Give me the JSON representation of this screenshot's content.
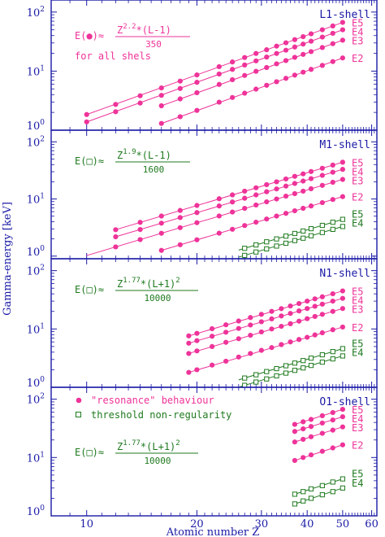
{
  "figure": {
    "ylabel": "Gamma-energy [keV]",
    "xlabel": "Atomic number Z",
    "x_ticks": [
      "10",
      "20",
      "30",
      "40",
      "50",
      "60"
    ],
    "colors": {
      "axis": "#1a1aa6",
      "resonance": "#ee3399",
      "threshold": "#1f7a1f"
    }
  },
  "panels": [
    {
      "shell_label": "L1-shell",
      "equation": {
        "prefix": "E(",
        "symbol": "●",
        "mid": ")≈",
        "numerator": "Z",
        "exponent": "2.2",
        "num_rest": "*(L-1)",
        "denominator": "350",
        "extra": "for all shels"
      },
      "series_labels": [
        "E5",
        "E4",
        "E3",
        "E2"
      ],
      "green_labels": []
    },
    {
      "shell_label": "M1-shell",
      "equation": {
        "prefix": "E(",
        "symbol": "□",
        "mid": ")≈",
        "numerator": "Z",
        "exponent": "1.9",
        "num_rest": "*(L-1)",
        "denominator": "1600",
        "extra": ""
      },
      "series_labels": [
        "E5",
        "E4",
        "E3",
        "E2"
      ],
      "green_labels": [
        "E5",
        "E4"
      ]
    },
    {
      "shell_label": "N1-shell",
      "equation": {
        "prefix": "E(",
        "symbol": "□",
        "mid": ")≈",
        "numerator": "Z",
        "exponent": "1.77",
        "num_rest": "*(L+1)",
        "num_sup2": "2",
        "denominator": "10000",
        "extra": ""
      },
      "series_labels": [
        "E5",
        "E4",
        "E3",
        "E2"
      ],
      "green_labels": [
        "E5",
        "E4"
      ]
    },
    {
      "shell_label": "O1-shell",
      "equation": {
        "prefix": "E(",
        "symbol": "□",
        "mid": ")≈",
        "numerator": "Z",
        "exponent": "1.77",
        "num_rest": "*(L+1)",
        "num_sup2": "2",
        "denominator": "10000",
        "extra": ""
      },
      "series_labels": [
        "E5",
        "E4",
        "E3",
        "E2"
      ],
      "green_labels": [
        "E5",
        "E4"
      ],
      "legend": [
        {
          "marker": "circle",
          "text": "\"resonance\" behaviour"
        },
        {
          "marker": "square",
          "text": "threshold non-regularity"
        }
      ]
    }
  ],
  "chart_data": [
    {
      "type": "scatter",
      "title": "L1-shell",
      "xscale": "log",
      "yscale": "log",
      "xlim": [
        8,
        62
      ],
      "ylim": [
        1,
        160
      ],
      "y_ticks": [
        "10^0",
        "10^1",
        "10^2"
      ],
      "fit_params": {
        "coefficient": 0.002857,
        "exponent": 2.2,
        "L_factor": "L-1"
      },
      "series": [
        {
          "name": "E5",
          "marker": "circle",
          "line_x": [
            10,
            50
          ],
          "x": [
            10,
            12,
            14,
            16,
            18,
            20,
            23,
            25,
            27,
            29,
            31,
            33,
            35,
            37,
            39,
            41,
            44,
            47,
            50
          ],
          "y": [
            1.84,
            2.73,
            3.83,
            5.19,
            6.77,
            8.62,
            11.9,
            14.3,
            17.0,
            19.9,
            23.0,
            26.5,
            30.2,
            34.1,
            38.3,
            42.8,
            50.2,
            58.2,
            66.8
          ]
        },
        {
          "name": "E4",
          "marker": "circle",
          "line_x": [
            10,
            50
          ],
          "x": [
            10,
            12,
            14,
            16,
            18,
            20,
            23,
            25,
            27,
            29,
            31,
            33,
            35,
            37,
            39,
            41,
            44,
            47,
            50
          ],
          "y": [
            1.38,
            2.05,
            2.88,
            3.89,
            5.08,
            6.47,
            8.93,
            10.7,
            12.7,
            14.9,
            17.3,
            19.9,
            22.6,
            25.6,
            28.7,
            32.1,
            37.7,
            43.7,
            50.1
          ]
        },
        {
          "name": "E3",
          "marker": "circle",
          "line_x": [
            16,
            50
          ],
          "x": [
            16,
            18,
            20,
            23,
            25,
            27,
            29,
            31,
            33,
            35,
            37,
            39,
            41,
            44,
            47,
            50
          ],
          "y": [
            2.59,
            3.39,
            4.31,
            5.95,
            7.15,
            8.45,
            9.92,
            11.5,
            13.3,
            15.1,
            17.1,
            19.2,
            21.4,
            25.1,
            29.1,
            33.4
          ]
        },
        {
          "name": "E2",
          "marker": "circle",
          "line_x": [
            16,
            50
          ],
          "x": [
            16,
            18,
            20,
            23,
            25,
            27,
            29,
            31,
            33,
            35,
            37,
            39,
            41,
            44,
            47,
            50
          ],
          "y": [
            1.3,
            1.69,
            2.16,
            2.98,
            3.58,
            4.23,
            4.96,
            5.75,
            6.62,
            7.55,
            8.55,
            9.6,
            10.7,
            12.5,
            14.5,
            16.7
          ]
        }
      ]
    },
    {
      "type": "scatter",
      "title": "M1-shell",
      "xscale": "log",
      "yscale": "log",
      "xlim": [
        8,
        62
      ],
      "ylim": [
        0.9,
        160
      ],
      "y_ticks": [
        "10^0",
        "10^1",
        "10^2"
      ],
      "series": [
        {
          "name": "E5",
          "marker": "circle",
          "line_x": [
            12,
            50
          ],
          "x": [
            12,
            14,
            16,
            18,
            20,
            23,
            25,
            27,
            29,
            31,
            33,
            35,
            37,
            39,
            41,
            44,
            47,
            50
          ],
          "y": [
            2.9,
            3.9,
            5.03,
            6.3,
            7.7,
            10.1,
            11.8,
            13.7,
            15.7,
            17.8,
            20.0,
            22.4,
            24.9,
            27.5,
            30.2,
            34.5,
            39.2,
            44.0
          ]
        },
        {
          "name": "E4",
          "marker": "circle",
          "line_x": [
            12,
            50
          ],
          "x": [
            12,
            14,
            16,
            18,
            20,
            23,
            25,
            27,
            29,
            31,
            33,
            35,
            37,
            39,
            41,
            44,
            47,
            50
          ],
          "y": [
            2.18,
            2.92,
            3.77,
            4.73,
            5.78,
            7.55,
            8.86,
            10.3,
            11.8,
            13.4,
            15.0,
            16.8,
            18.7,
            20.6,
            22.7,
            25.9,
            29.4,
            33.0
          ]
        },
        {
          "name": "E3",
          "marker": "circle",
          "line_x": [
            10,
            50
          ],
          "x": [
            12,
            14,
            16,
            18,
            20,
            23,
            25,
            27,
            29,
            31,
            33,
            35,
            37,
            39,
            41,
            44,
            47,
            50
          ],
          "y": [
            1.45,
            1.95,
            2.51,
            3.15,
            3.85,
            5.04,
            5.91,
            6.85,
            7.85,
            8.92,
            10.0,
            11.2,
            12.4,
            13.7,
            15.1,
            17.3,
            19.6,
            22.0
          ]
        },
        {
          "name": "E2",
          "marker": "circle",
          "line_x": [
            16,
            50
          ],
          "x": [
            16,
            18,
            20,
            23,
            25,
            27,
            29,
            31,
            33,
            35,
            37,
            39,
            41,
            44,
            47,
            50
          ],
          "y": [
            1.26,
            1.58,
            1.93,
            2.52,
            2.95,
            3.43,
            3.93,
            4.46,
            5.02,
            5.6,
            6.22,
            6.87,
            7.55,
            8.63,
            9.79,
            11.0
          ]
        },
        {
          "name": "E5",
          "marker": "square",
          "line_x": [
            26,
            50
          ],
          "x": [
            27,
            29,
            31,
            33,
            35,
            37,
            39,
            41,
            44,
            47,
            50
          ],
          "y": [
            1.37,
            1.57,
            1.78,
            2.0,
            2.24,
            2.49,
            2.75,
            3.02,
            3.45,
            3.92,
            4.4
          ]
        },
        {
          "name": "E4",
          "marker": "square",
          "line_x": [
            26,
            50
          ],
          "x": [
            27,
            29,
            31,
            33,
            35,
            37,
            39,
            41,
            44,
            47,
            50
          ],
          "y": [
            1.03,
            1.18,
            1.34,
            1.5,
            1.68,
            1.87,
            2.06,
            2.27,
            2.59,
            2.94,
            3.3
          ]
        }
      ]
    },
    {
      "type": "scatter",
      "title": "N1-shell",
      "xscale": "log",
      "yscale": "log",
      "xlim": [
        8,
        62
      ],
      "ylim": [
        1,
        160
      ],
      "y_ticks": [
        "10^0",
        "10^1",
        "10^2"
      ],
      "series": [
        {
          "name": "E5",
          "marker": "circle",
          "line_x": [
            19,
            50
          ],
          "x": [
            19,
            20,
            22,
            24,
            26,
            28,
            30,
            32,
            34,
            36,
            38,
            40,
            42,
            44,
            47,
            50
          ],
          "y": [
            7.6,
            8.4,
            10.1,
            11.8,
            13.7,
            15.7,
            17.8,
            20.0,
            22.3,
            24.8,
            27.3,
            30.0,
            32.8,
            35.6,
            40.1,
            44.9
          ]
        },
        {
          "name": "E4",
          "marker": "circle",
          "line_x": [
            19,
            50
          ],
          "x": [
            19,
            20,
            22,
            24,
            26,
            28,
            30,
            32,
            34,
            36,
            38,
            40,
            42,
            44,
            47,
            50
          ],
          "y": [
            5.7,
            6.3,
            7.5,
            8.8,
            10.2,
            11.7,
            13.3,
            14.9,
            16.7,
            18.5,
            20.4,
            22.4,
            24.5,
            26.6,
            30.0,
            33.5
          ]
        },
        {
          "name": "E3",
          "marker": "circle",
          "line_x": [
            19,
            50
          ],
          "x": [
            19,
            20,
            22,
            24,
            26,
            28,
            30,
            32,
            34,
            36,
            38,
            40,
            42,
            44,
            47,
            50
          ],
          "y": [
            3.8,
            4.2,
            5.0,
            5.9,
            6.8,
            7.8,
            8.9,
            10.0,
            11.1,
            12.3,
            13.6,
            15.0,
            16.4,
            17.8,
            20.0,
            22.4
          ]
        },
        {
          "name": "E2",
          "marker": "circle",
          "line_x": [
            19,
            50
          ],
          "x": [
            19,
            20,
            22,
            24,
            26,
            28,
            30,
            32,
            34,
            36,
            38,
            40,
            42,
            44,
            47,
            50
          ],
          "y": [
            1.8,
            2.0,
            2.4,
            2.8,
            3.3,
            3.8,
            4.3,
            4.8,
            5.4,
            6.0,
            6.6,
            7.2,
            7.9,
            8.6,
            9.7,
            10.8
          ]
        },
        {
          "name": "E5",
          "marker": "square",
          "line_x": [
            26,
            50
          ],
          "x": [
            27,
            29,
            31,
            33,
            35,
            37,
            39,
            41,
            44,
            47,
            50
          ],
          "y": [
            1.44,
            1.64,
            1.86,
            2.09,
            2.34,
            2.6,
            2.87,
            3.16,
            3.61,
            4.09,
            4.6
          ]
        },
        {
          "name": "E4",
          "marker": "square",
          "line_x": [
            26,
            50
          ],
          "x": [
            27,
            29,
            31,
            33,
            35,
            37,
            39,
            41,
            44,
            47,
            50
          ],
          "y": [
            1.08,
            1.23,
            1.39,
            1.57,
            1.75,
            1.95,
            2.15,
            2.37,
            2.7,
            3.07,
            3.45
          ]
        }
      ]
    },
    {
      "type": "scatter",
      "title": "O1-shell",
      "xscale": "log",
      "yscale": "log",
      "xlim": [
        8,
        62
      ],
      "ylim": [
        1,
        160
      ],
      "y_ticks": [
        "10^0",
        "10^1",
        "10^2"
      ],
      "series": [
        {
          "name": "E5",
          "marker": "circle",
          "line_x": [
            37,
            50
          ],
          "x": [
            37,
            39,
            41,
            44,
            47,
            50
          ],
          "y": [
            37,
            41,
            45,
            52,
            59,
            67
          ]
        },
        {
          "name": "E4",
          "marker": "circle",
          "line_x": [
            37,
            50
          ],
          "x": [
            37,
            39,
            41,
            44,
            47,
            50
          ],
          "y": [
            28,
            31,
            34,
            39,
            44,
            50
          ]
        },
        {
          "name": "E3",
          "marker": "circle",
          "line_x": [
            37,
            50
          ],
          "x": [
            37,
            39,
            41,
            44,
            47,
            50
          ],
          "y": [
            18.5,
            20.5,
            22.7,
            26,
            29.5,
            33.5
          ]
        },
        {
          "name": "E2",
          "marker": "circle",
          "line_x": [
            37,
            50
          ],
          "x": [
            37,
            39,
            41,
            44,
            47,
            50
          ],
          "y": [
            8.9,
            10.0,
            11.1,
            12.8,
            14.6,
            16.5
          ]
        },
        {
          "name": "E5",
          "marker": "square",
          "line_x": [
            37,
            50
          ],
          "x": [
            37,
            39,
            41,
            44,
            47,
            50
          ],
          "y": [
            2.35,
            2.6,
            2.9,
            3.3,
            3.8,
            4.3
          ]
        },
        {
          "name": "E4",
          "marker": "square",
          "line_x": [
            37,
            50
          ],
          "x": [
            37,
            39,
            41,
            44,
            47,
            50
          ],
          "y": [
            1.6,
            1.8,
            2.0,
            2.3,
            2.6,
            3.0
          ]
        }
      ]
    }
  ]
}
